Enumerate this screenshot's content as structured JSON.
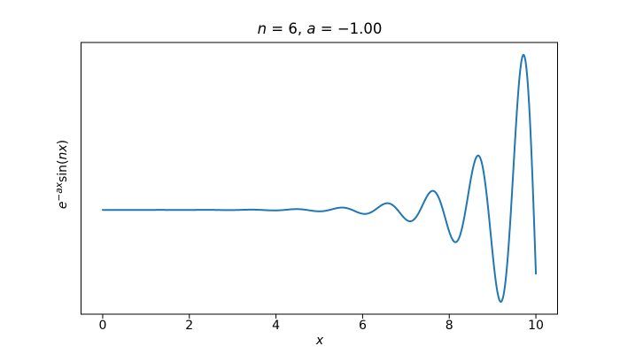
{
  "chart_data": {
    "type": "line",
    "title": {
      "full": "n = 6, a = −1.00",
      "segments": [
        {
          "text": "n",
          "italic": true
        },
        {
          "text": " = 6, ",
          "italic": false
        },
        {
          "text": "a",
          "italic": true
        },
        {
          "text": " = −1.00",
          "italic": false
        }
      ]
    },
    "xlabel": {
      "full": "x",
      "italic": true
    },
    "ylabel": {
      "full": "e^(−ax) sin(nx)",
      "segments": [
        {
          "text": "e",
          "italic": true
        },
        {
          "text": "−",
          "italic": false,
          "sup": true
        },
        {
          "text": "ax",
          "italic": true,
          "sup": true
        },
        {
          "text": "sin",
          "italic": false
        },
        {
          "text": "(",
          "italic": false
        },
        {
          "text": "nx",
          "italic": true
        },
        {
          "text": ")",
          "italic": false
        }
      ]
    },
    "xlim": [
      -0.5,
      10.5
    ],
    "ylim": [
      -10971,
      17625
    ],
    "x_ticks": {
      "values": [
        0,
        2,
        4,
        6,
        8,
        10
      ],
      "labels": [
        "0",
        "2",
        "4",
        "6",
        "8",
        "10"
      ]
    },
    "y_ticks": {
      "values": [],
      "labels": []
    },
    "grid": false,
    "legend": null,
    "axis_color": "#000000",
    "text_color": "#000000",
    "background_color": "#ffffff",
    "series": [
      {
        "name": "exp(−a·x)·sin(n·x)",
        "color": "#1f77b4",
        "line_width": 2,
        "function": {
          "expr": "exp(-a*x)*sin(n*x)",
          "params": {
            "n": 6,
            "a": -1.0
          },
          "x_range": [
            0,
            10
          ],
          "samples": 1200
        },
        "key_points": [
          {
            "x": 0,
            "y": 0,
            "note": "start, flat region y≈0 until x≈5"
          },
          {
            "x": 7.62,
            "y": 2013,
            "note": "local max"
          },
          {
            "x": 8.14,
            "y": -3397,
            "note": "local min"
          },
          {
            "x": 8.67,
            "y": 5726,
            "note": "local max"
          },
          {
            "x": 9.19,
            "y": -9671,
            "note": "global min"
          },
          {
            "x": 9.71,
            "y": 16325,
            "note": "global max"
          },
          {
            "x": 10,
            "y": -6713,
            "note": "endpoint"
          }
        ]
      }
    ]
  }
}
